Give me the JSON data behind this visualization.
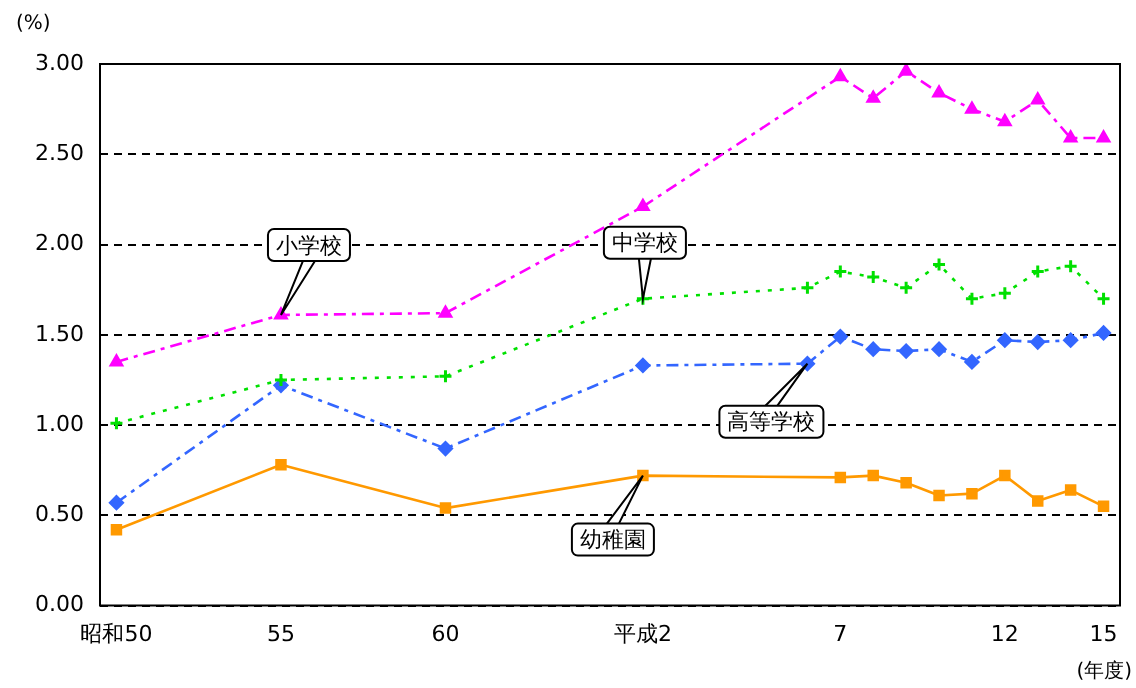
{
  "chart_data": {
    "type": "line",
    "ylabel": "(%)",
    "xlabel": "(年度)",
    "categories": [
      "昭和50",
      null,
      null,
      null,
      null,
      "55",
      null,
      null,
      null,
      null,
      "60",
      null,
      null,
      null,
      null,
      null,
      "平成2",
      null,
      null,
      null,
      null,
      null,
      "7",
      null,
      null,
      null,
      null,
      "12",
      null,
      null,
      "15"
    ],
    "ylim": [
      0,
      3
    ],
    "yticks": [
      {
        "value": 0,
        "label": "0.00"
      },
      {
        "value": 0.5,
        "label": "0.50"
      },
      {
        "value": 1,
        "label": "1.00"
      },
      {
        "value": 1.5,
        "label": "1.50"
      },
      {
        "value": 2,
        "label": "2.00"
      },
      {
        "value": 2.5,
        "label": "2.50"
      },
      {
        "value": 3,
        "label": "3.00"
      }
    ],
    "grid": "y",
    "legend": false,
    "series": [
      {
        "name": "小学校",
        "color": "#ff00ff",
        "marker": "triangle",
        "line_style": "dashed",
        "values": [
          1.35,
          null,
          null,
          null,
          null,
          1.61,
          null,
          null,
          null,
          null,
          1.62,
          null,
          null,
          null,
          null,
          null,
          2.21,
          null,
          null,
          null,
          null,
          null,
          2.93,
          2.81,
          2.96,
          2.84,
          2.75,
          2.68,
          2.8,
          2.59,
          2.59
        ]
      },
      {
        "name": "中学校",
        "color": "#00e000",
        "marker": "cross",
        "line_style": "dotted",
        "values": [
          1.01,
          null,
          null,
          null,
          null,
          1.25,
          null,
          null,
          null,
          null,
          1.27,
          null,
          null,
          null,
          null,
          null,
          1.7,
          null,
          null,
          null,
          null,
          1.76,
          1.85,
          1.82,
          1.76,
          1.89,
          1.7,
          1.73,
          1.85,
          1.88,
          1.7
        ]
      },
      {
        "name": "高等学校",
        "color": "#3366ff",
        "marker": "diamond",
        "line_style": "dashed",
        "values": [
          0.57,
          null,
          null,
          null,
          null,
          1.22,
          null,
          null,
          null,
          null,
          0.87,
          null,
          null,
          null,
          null,
          null,
          1.33,
          null,
          null,
          null,
          null,
          1.34,
          1.49,
          1.42,
          1.41,
          1.42,
          1.35,
          1.47,
          1.46,
          1.47,
          1.51
        ]
      },
      {
        "name": "幼稚園",
        "color": "#ff9900",
        "marker": "square",
        "line_style": "solid",
        "values": [
          0.42,
          null,
          null,
          null,
          null,
          0.78,
          null,
          null,
          null,
          null,
          0.54,
          null,
          null,
          null,
          null,
          null,
          0.72,
          null,
          null,
          null,
          null,
          null,
          0.71,
          0.72,
          0.68,
          0.61,
          0.62,
          0.72,
          0.58,
          0.64,
          0.55
        ]
      }
    ]
  }
}
